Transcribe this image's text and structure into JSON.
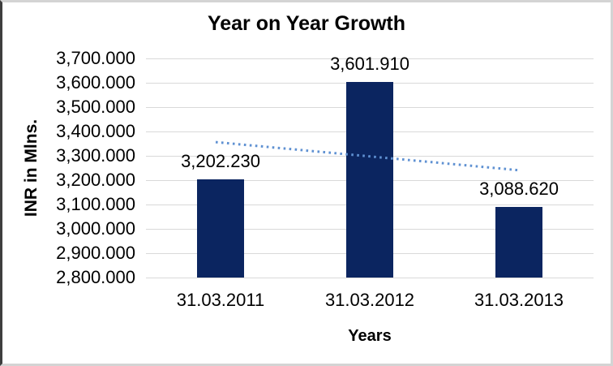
{
  "chart_data": {
    "type": "bar",
    "title": "Year on Year Growth",
    "xlabel": "Years",
    "ylabel": "INR in Mlns.",
    "categories": [
      "31.03.2011",
      "31.03.2012",
      "31.03.2013"
    ],
    "values": [
      3202.23,
      3601.91,
      3088.62
    ],
    "value_labels": [
      "3,202.230",
      "3,601.910",
      "3,088.620"
    ],
    "ylim": [
      2800,
      3700
    ],
    "yticks": [
      {
        "value": 2800,
        "label": "2,800.000"
      },
      {
        "value": 2900,
        "label": "2,900.000"
      },
      {
        "value": 3000,
        "label": "3,000.000"
      },
      {
        "value": 3100,
        "label": "3,100.000"
      },
      {
        "value": 3200,
        "label": "3,200.000"
      },
      {
        "value": 3300,
        "label": "3,300.000"
      },
      {
        "value": 3400,
        "label": "3,400.000"
      },
      {
        "value": 3500,
        "label": "3,500.000"
      },
      {
        "value": 3600,
        "label": "3,600.000"
      },
      {
        "value": 3700,
        "label": "3,700.000"
      }
    ],
    "grid": true,
    "legend": "none",
    "trendline": {
      "type": "linear",
      "style": "dotted",
      "values_at_categories": [
        3354.4,
        3297.59,
        3240.77
      ]
    },
    "colors": {
      "bar": "#0b2560",
      "gridline": "#d9d9d9",
      "trendline": "#5f91d2",
      "text": "#000000",
      "background": "#ffffff",
      "frame_border_light": "#d4d4d4",
      "frame_border_dark": "#3e3e3e"
    }
  }
}
